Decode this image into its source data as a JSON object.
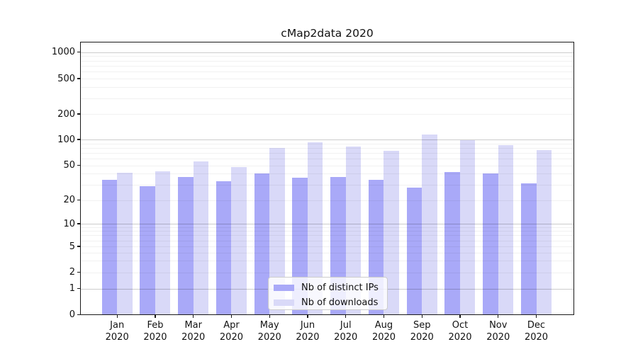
{
  "title": "cMap2data 2020",
  "chart_data": {
    "type": "bar",
    "title": "cMap2data 2020",
    "categories": [
      "Jan",
      "Feb",
      "Mar",
      "Apr",
      "May",
      "Jun",
      "Jul",
      "Aug",
      "Sep",
      "Oct",
      "Nov",
      "Dec"
    ],
    "category_year": "2020",
    "series": [
      {
        "name": "Nb of distinct IPs",
        "key": "distinct-ips",
        "color": "#a9a9f8",
        "values": [
          34,
          29,
          37,
          33,
          40,
          36,
          37,
          34,
          28,
          42,
          40,
          31
        ]
      },
      {
        "name": "Nb of downloads",
        "key": "downloads",
        "color": "#d9d9f8",
        "values": [
          41,
          43,
          56,
          48,
          80,
          92,
          82,
          74,
          115,
          98,
          86,
          75
        ]
      }
    ],
    "xlabel": "",
    "ylabel": "",
    "yscale": "symlog",
    "y_ticks": [
      0,
      1,
      2,
      5,
      10,
      20,
      50,
      100,
      200,
      500,
      1000
    ],
    "ylim": [
      0,
      1300
    ],
    "grid": "horizontal major+minor",
    "legend_position": "inside bottom-center"
  },
  "legend": {
    "items": [
      {
        "label": "Nb of distinct IPs",
        "color": "#a9a9f8",
        "key": "distinct-ips"
      },
      {
        "label": "Nb of downloads",
        "color": "#d9d9f8",
        "key": "downloads"
      }
    ]
  }
}
